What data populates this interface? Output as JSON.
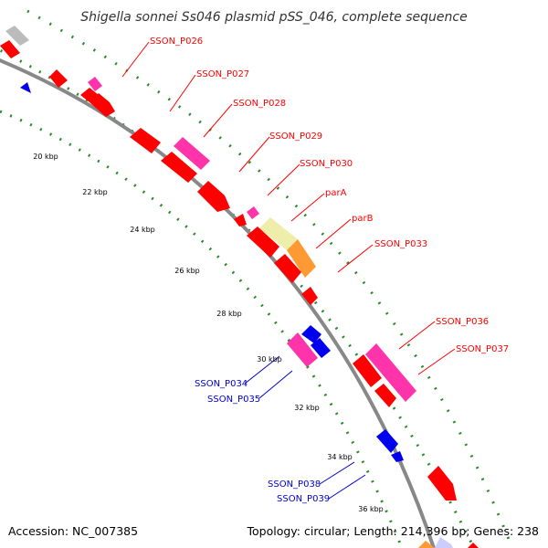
{
  "title": "Shigella sonnei Ss046 plasmid pSS_046, complete sequence",
  "footer": {
    "accession": "Accession: NC_007385",
    "summary": "Topology: circular; Length: 214,396 bp; Genes: 238"
  },
  "colors": {
    "backbone": "#888888",
    "tick_dots": "#2a8a2a",
    "cds": "#ff0000",
    "pink": "#ff33aa",
    "yellow": "#eeeeaa",
    "orange": "#ff9933",
    "grey": "#bbbbbb",
    "blue": "#0000ee",
    "lavender": "#ccccff",
    "label_forward": "#ff0000",
    "label_reverse": "#0000cc"
  },
  "kbp_ticks": [
    "20 kbp",
    "22 kbp",
    "24 kbp",
    "26 kbp",
    "28 kbp",
    "30 kbp",
    "32 kbp",
    "34 kbp",
    "36 kbp"
  ],
  "labels_forward": [
    "SSON_P026",
    "SSON_P027",
    "SSON_P028",
    "SSON_P029",
    "SSON_P030",
    "parA",
    "parB",
    "SSON_P033",
    "SSON_P036",
    "SSON_P037"
  ],
  "labels_reverse": [
    "SSON_P034",
    "SSON_P035",
    "SSON_P038",
    "SSON_P039"
  ]
}
